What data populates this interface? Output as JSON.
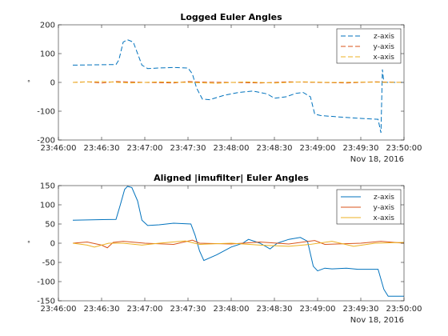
{
  "chart_data": [
    {
      "type": "line",
      "title": "Logged Euler Angles",
      "xlabel": "",
      "ylabel": "°",
      "date_label": "Nov 18, 2016",
      "x_tick_labels": [
        "23:46:00",
        "23:46:30",
        "23:47:00",
        "23:47:30",
        "23:48:00",
        "23:48:30",
        "23:49:00",
        "23:49:30",
        "23:50:00"
      ],
      "x_range": [
        "23:46:00",
        "23:50:00"
      ],
      "ylim": [
        -200,
        200
      ],
      "y_ticks": [
        -200,
        -100,
        0,
        100,
        200
      ],
      "grid": false,
      "legend_position": "top-right",
      "series": [
        {
          "name": "z-axis",
          "color": "#0072BD",
          "style": "dashed",
          "points": [
            [
              "23:46:10",
              60
            ],
            [
              "23:46:40",
              62
            ],
            [
              "23:46:42",
              78
            ],
            [
              "23:46:45",
              140
            ],
            [
              "23:46:48",
              148
            ],
            [
              "23:46:52",
              140
            ],
            [
              "23:46:55",
              100
            ],
            [
              "23:46:58",
              60
            ],
            [
              "23:47:02",
              48
            ],
            [
              "23:47:10",
              50
            ],
            [
              "23:47:20",
              52
            ],
            [
              "23:47:30",
              50
            ],
            [
              "23:47:33",
              30
            ],
            [
              "23:47:36",
              -20
            ],
            [
              "23:47:40",
              -58
            ],
            [
              "23:47:45",
              -60
            ],
            [
              "23:47:55",
              -45
            ],
            [
              "23:48:05",
              -35
            ],
            [
              "23:48:15",
              -30
            ],
            [
              "23:48:25",
              -40
            ],
            [
              "23:48:30",
              -55
            ],
            [
              "23:48:38",
              -50
            ],
            [
              "23:48:45",
              -38
            ],
            [
              "23:48:50",
              -35
            ],
            [
              "23:48:55",
              -50
            ],
            [
              "23:48:58",
              -110
            ],
            [
              "23:49:02",
              -115
            ],
            [
              "23:49:15",
              -120
            ],
            [
              "23:49:30",
              -125
            ],
            [
              "23:49:42",
              -128
            ],
            [
              "23:49:44",
              -175
            ],
            [
              "23:49:45",
              45
            ],
            [
              "23:49:46",
              0
            ],
            [
              "23:50:00",
              0
            ]
          ]
        },
        {
          "name": "y-axis",
          "color": "#D95319",
          "style": "dashed",
          "points": [
            [
              "23:46:10",
              0
            ],
            [
              "23:46:20",
              2
            ],
            [
              "23:46:30",
              -2
            ],
            [
              "23:46:40",
              3
            ],
            [
              "23:47:00",
              0
            ],
            [
              "23:47:20",
              -2
            ],
            [
              "23:47:30",
              3
            ],
            [
              "23:47:40",
              1
            ],
            [
              "23:48:00",
              0
            ],
            [
              "23:48:20",
              -2
            ],
            [
              "23:48:40",
              2
            ],
            [
              "23:49:00",
              0
            ],
            [
              "23:49:20",
              -2
            ],
            [
              "23:49:40",
              2
            ],
            [
              "23:50:00",
              0
            ]
          ]
        },
        {
          "name": "x-axis",
          "color": "#EDB120",
          "style": "dashed",
          "points": [
            [
              "23:46:10",
              0
            ],
            [
              "23:46:30",
              3
            ],
            [
              "23:46:50",
              -2
            ],
            [
              "23:47:10",
              2
            ],
            [
              "23:47:30",
              0
            ],
            [
              "23:47:50",
              -3
            ],
            [
              "23:48:10",
              2
            ],
            [
              "23:48:30",
              -2
            ],
            [
              "23:48:50",
              2
            ],
            [
              "23:49:10",
              0
            ],
            [
              "23:49:30",
              1
            ],
            [
              "23:50:00",
              0
            ]
          ]
        }
      ]
    },
    {
      "type": "line",
      "title": "Aligned |imufilter| Euler Angles",
      "xlabel": "",
      "ylabel": "°",
      "date_label": "Nov 18, 2016",
      "x_tick_labels": [
        "23:46:00",
        "23:46:30",
        "23:47:00",
        "23:47:30",
        "23:48:00",
        "23:48:30",
        "23:49:00",
        "23:49:30",
        "23:50:00"
      ],
      "x_range": [
        "23:46:00",
        "23:50:00"
      ],
      "ylim": [
        -150,
        150
      ],
      "y_ticks": [
        -150,
        -100,
        -50,
        0,
        50,
        100,
        150
      ],
      "grid": false,
      "legend_position": "top-right",
      "series": [
        {
          "name": "z-axis",
          "color": "#0072BD",
          "style": "solid",
          "points": [
            [
              "23:46:10",
              60
            ],
            [
              "23:46:40",
              62
            ],
            [
              "23:46:43",
              100
            ],
            [
              "23:46:46",
              140
            ],
            [
              "23:46:48",
              148
            ],
            [
              "23:46:51",
              145
            ],
            [
              "23:46:55",
              110
            ],
            [
              "23:46:58",
              60
            ],
            [
              "23:47:02",
              46
            ],
            [
              "23:47:10",
              48
            ],
            [
              "23:47:20",
              52
            ],
            [
              "23:47:32",
              50
            ],
            [
              "23:47:35",
              20
            ],
            [
              "23:47:38",
              -20
            ],
            [
              "23:47:41",
              -45
            ],
            [
              "23:47:50",
              -30
            ],
            [
              "23:48:00",
              -10
            ],
            [
              "23:48:08",
              0
            ],
            [
              "23:48:12",
              10
            ],
            [
              "23:48:20",
              0
            ],
            [
              "23:48:27",
              -15
            ],
            [
              "23:48:32",
              0
            ],
            [
              "23:48:40",
              10
            ],
            [
              "23:48:48",
              15
            ],
            [
              "23:48:53",
              5
            ],
            [
              "23:48:57",
              -60
            ],
            [
              "23:49:00",
              -72
            ],
            [
              "23:49:05",
              -65
            ],
            [
              "23:49:10",
              -67
            ],
            [
              "23:49:20",
              -65
            ],
            [
              "23:49:28",
              -68
            ],
            [
              "23:49:42",
              -68
            ],
            [
              "23:49:46",
              -120
            ],
            [
              "23:49:49",
              -138
            ],
            [
              "23:50:00",
              -138
            ]
          ]
        },
        {
          "name": "y-axis",
          "color": "#D95319",
          "style": "solid",
          "points": [
            [
              "23:46:10",
              0
            ],
            [
              "23:46:20",
              3
            ],
            [
              "23:46:30",
              -5
            ],
            [
              "23:46:34",
              -12
            ],
            [
              "23:46:38",
              2
            ],
            [
              "23:46:45",
              5
            ],
            [
              "23:47:00",
              0
            ],
            [
              "23:47:20",
              -3
            ],
            [
              "23:47:33",
              8
            ],
            [
              "23:47:38",
              0
            ],
            [
              "23:48:00",
              -2
            ],
            [
              "23:48:20",
              3
            ],
            [
              "23:48:40",
              -2
            ],
            [
              "23:48:58",
              7
            ],
            [
              "23:49:05",
              -3
            ],
            [
              "23:49:30",
              0
            ],
            [
              "23:49:44",
              5
            ],
            [
              "23:50:00",
              0
            ]
          ]
        },
        {
          "name": "x-axis",
          "color": "#EDB120",
          "style": "solid",
          "points": [
            [
              "23:46:10",
              0
            ],
            [
              "23:46:20",
              -5
            ],
            [
              "23:46:25",
              -10
            ],
            [
              "23:46:35",
              0
            ],
            [
              "23:46:45",
              0
            ],
            [
              "23:46:58",
              -5
            ],
            [
              "23:47:10",
              0
            ],
            [
              "23:47:28",
              6
            ],
            [
              "23:47:38",
              -3
            ],
            [
              "23:48:00",
              0
            ],
            [
              "23:48:20",
              -5
            ],
            [
              "23:48:40",
              -8
            ],
            [
              "23:48:55",
              -3
            ],
            [
              "23:49:10",
              5
            ],
            [
              "23:49:25",
              -8
            ],
            [
              "23:49:40",
              0
            ],
            [
              "23:50:00",
              2
            ]
          ]
        }
      ]
    }
  ]
}
